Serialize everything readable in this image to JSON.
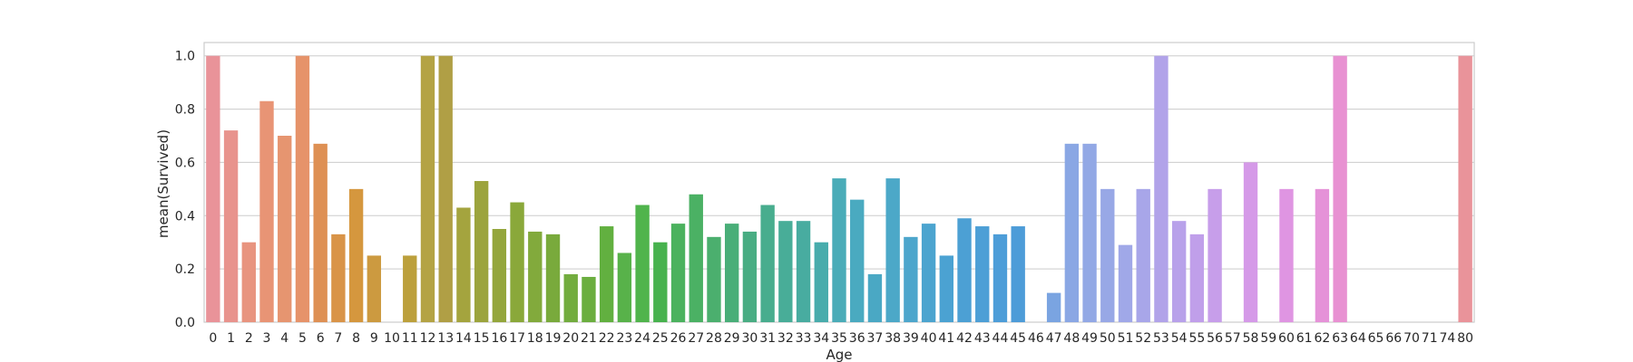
{
  "chart_data": {
    "type": "bar",
    "xlabel": "Age",
    "ylabel": "mean(Survived)",
    "ylim": [
      0,
      1.05
    ],
    "yticks": [
      "0.0",
      "0.2",
      "0.4",
      "0.6",
      "0.8",
      "1.0"
    ],
    "grid": true,
    "categories": [
      "0",
      "1",
      "2",
      "3",
      "4",
      "5",
      "6",
      "7",
      "8",
      "9",
      "10",
      "11",
      "12",
      "13",
      "14",
      "15",
      "16",
      "17",
      "18",
      "19",
      "20",
      "21",
      "22",
      "23",
      "24",
      "25",
      "26",
      "27",
      "28",
      "29",
      "30",
      "31",
      "32",
      "33",
      "34",
      "35",
      "36",
      "37",
      "38",
      "39",
      "40",
      "41",
      "42",
      "43",
      "44",
      "45",
      "46",
      "47",
      "48",
      "49",
      "50",
      "51",
      "52",
      "53",
      "54",
      "55",
      "56",
      "57",
      "58",
      "59",
      "60",
      "61",
      "62",
      "63",
      "64",
      "65",
      "66",
      "70",
      "71",
      "74",
      "80"
    ],
    "values": [
      1.0,
      0.72,
      0.3,
      0.83,
      0.7,
      1.0,
      0.67,
      0.33,
      0.5,
      0.25,
      0.0,
      0.25,
      1.0,
      1.0,
      0.43,
      0.53,
      0.35,
      0.45,
      0.34,
      0.33,
      0.18,
      0.17,
      0.36,
      0.26,
      0.44,
      0.3,
      0.37,
      0.48,
      0.32,
      0.37,
      0.34,
      0.44,
      0.38,
      0.38,
      0.3,
      0.54,
      0.46,
      0.18,
      0.54,
      0.32,
      0.37,
      0.25,
      0.39,
      0.36,
      0.33,
      0.36,
      0.0,
      0.11,
      0.67,
      0.67,
      0.5,
      0.29,
      0.5,
      1.0,
      0.38,
      0.33,
      0.5,
      0.0,
      0.6,
      0.0,
      0.5,
      0.0,
      0.5,
      1.0,
      0.0,
      0.0,
      0.0,
      0.0,
      0.0,
      0.0,
      1.0
    ],
    "colors": [
      "#e99399",
      "#e8938d",
      "#e8947f",
      "#e89475",
      "#e69570",
      "#e6936a",
      "#de9054",
      "#d99448",
      "#d5973e",
      "#cc9a40",
      "#c59e3b",
      "#bca03c",
      "#b4a344",
      "#b09f45",
      "#a4a43e",
      "#9ca43d",
      "#94a63c",
      "#8aa83a",
      "#82aa3c",
      "#79aa3c",
      "#72ac3e",
      "#6bae3f",
      "#62b040",
      "#58b24a",
      "#50b44c",
      "#47b24e",
      "#4bb25e",
      "#4bb164",
      "#4baf6e",
      "#49ae78",
      "#49ad83",
      "#48ad8e",
      "#48ad98",
      "#48aca0",
      "#48acac",
      "#4aacb8",
      "#4aaac0",
      "#4aa8c4",
      "#4ca8c8",
      "#4da6cc",
      "#4ca4cf",
      "#4ba2d2",
      "#4ca0d4",
      "#4d9fd6",
      "#4d9dd8",
      "#4d9cd8",
      "#6aa0dd",
      "#7aa4e1",
      "#8aa7e4",
      "#92a8e5",
      "#98a8e6",
      "#a0a8e8",
      "#a8a6e9",
      "#b1a3e9",
      "#b8a1ea",
      "#c09fea",
      "#c79eea",
      "#cf9be9",
      "#d59ae8",
      "#da97e6",
      "#df95e2",
      "#e293dd",
      "#e592d8",
      "#e891d2",
      "#e991ca",
      "#ea91c2",
      "#ea91ba",
      "#ea92b1",
      "#ea92a8",
      "#e992a0",
      "#e9939a"
    ],
    "type_detail": "vertical bar chart with one bar per age category"
  }
}
